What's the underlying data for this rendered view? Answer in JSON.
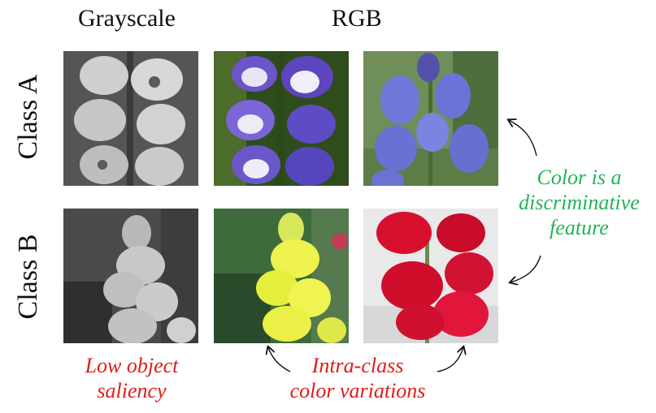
{
  "headers": {
    "grayscale": "Grayscale",
    "rgb": "RGB"
  },
  "rows": {
    "class_a": "Class A",
    "class_b": "Class B"
  },
  "annotations": {
    "low_saliency_line1": "Low object",
    "low_saliency_line2": "saliency",
    "intra_class_line1": "Intra-class",
    "intra_class_line2": "color variations",
    "color_feature_line1": "Color is a",
    "color_feature_line2": "discriminative",
    "color_feature_line3": "feature"
  },
  "colors": {
    "annotation_red": "#e01b1b",
    "annotation_green": "#22b35a",
    "class_a_purple": "#6b55c9",
    "class_a_blue": "#6f78d8",
    "class_b_yellow": "#eef24e",
    "class_b_red": "#d8102e"
  },
  "images": [
    {
      "name": "class-a-grayscale",
      "class": "Class A",
      "mode": "Grayscale"
    },
    {
      "name": "class-a-rgb-purple",
      "class": "Class A",
      "mode": "RGB"
    },
    {
      "name": "class-a-rgb-blue",
      "class": "Class A",
      "mode": "RGB"
    },
    {
      "name": "class-b-grayscale",
      "class": "Class B",
      "mode": "Grayscale"
    },
    {
      "name": "class-b-rgb-yellow",
      "class": "Class B",
      "mode": "RGB"
    },
    {
      "name": "class-b-rgb-red",
      "class": "Class B",
      "mode": "RGB"
    }
  ]
}
